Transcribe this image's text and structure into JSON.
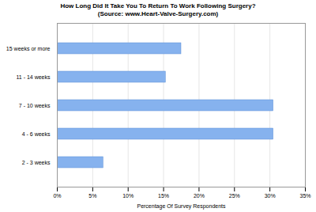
{
  "chart_data": {
    "type": "bar",
    "orientation": "horizontal",
    "title": "How Long Did It Take You To Return To Work Following Surgery?",
    "subtitle": "(Source: www.Heart-Valve-Surgery.com)",
    "x_label": "Percentage Of Survey Respondents",
    "categories": [
      "15 weeks or more",
      "11 - 14 weeks",
      "7 - 10 weeks",
      "4 - 6 weeks",
      "2 - 3 weeks"
    ],
    "values": [
      17.5,
      15.3,
      30.5,
      30.5,
      6.5
    ],
    "color": "#86b2ee",
    "xlim": [
      0,
      35
    ],
    "xticks": [
      {
        "value": 0,
        "label": "0%"
      },
      {
        "value": 5,
        "label": "5%"
      },
      {
        "value": 10,
        "label": "10%"
      },
      {
        "value": 15,
        "label": "15%"
      },
      {
        "value": 20,
        "label": "20%"
      },
      {
        "value": 25,
        "label": "25%"
      },
      {
        "value": 30,
        "label": "30%"
      },
      {
        "value": 35,
        "label": "35%"
      }
    ],
    "grid": true
  }
}
